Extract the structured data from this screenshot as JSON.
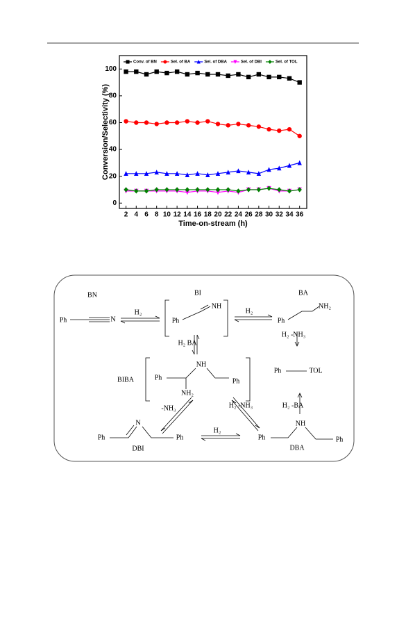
{
  "chart_data": {
    "type": "line",
    "xlabel": "Time-on-stream (h)",
    "ylabel": "Conversion/Selectivity (%)",
    "x": [
      2,
      4,
      6,
      8,
      10,
      12,
      14,
      16,
      18,
      20,
      22,
      24,
      26,
      28,
      30,
      32,
      34,
      36
    ],
    "xlim": [
      0.7,
      37.4
    ],
    "xticks": [
      2,
      4,
      6,
      8,
      10,
      12,
      14,
      16,
      18,
      20,
      22,
      24,
      26,
      28,
      30,
      32,
      34,
      36
    ],
    "ylim": [
      -4,
      110
    ],
    "yticks": [
      0,
      20,
      40,
      60,
      80,
      100
    ],
    "legend": "top",
    "series": [
      {
        "name": "Conv. of BN",
        "color": "#000000",
        "marker": "square",
        "values": [
          98,
          98,
          96,
          98,
          97,
          98,
          96,
          97,
          96,
          96,
          95,
          96,
          94,
          96,
          94,
          94,
          93,
          90
        ]
      },
      {
        "name": "Sel. of BA",
        "color": "#ff0000",
        "marker": "circle",
        "values": [
          61,
          60,
          60,
          59,
          60,
          60,
          61,
          60,
          61,
          59,
          58,
          59,
          58,
          57,
          55,
          54,
          55,
          50
        ]
      },
      {
        "name": "Sel. of DBA",
        "color": "#0000ff",
        "marker": "triangle-up",
        "values": [
          22,
          22,
          22,
          23,
          22,
          22,
          21,
          22,
          21,
          22,
          23,
          24,
          23,
          22,
          25,
          26,
          28,
          30
        ]
      },
      {
        "name": "Sel. of DBI",
        "color": "#ff00ff",
        "marker": "triangle-down",
        "values": [
          9,
          9,
          9,
          9,
          9,
          9,
          8,
          9,
          9,
          8,
          9,
          8,
          10,
          10,
          11,
          9,
          9,
          10
        ]
      },
      {
        "name": "Sel. of TOL",
        "color": "#008000",
        "marker": "diamond",
        "values": [
          10,
          9,
          9,
          10,
          10,
          10,
          10,
          10,
          10,
          10,
          10,
          9,
          10,
          10,
          11,
          10,
          9,
          10
        ]
      }
    ]
  },
  "scheme": {
    "labels": [
      "BN",
      "BI",
      "BA",
      "Ph",
      "N",
      "H₂",
      "NH",
      "Ph",
      "H₂",
      "NH₂",
      "Ph",
      "H₂ -NH₃",
      "H₂ BA",
      "NH",
      "BIBA",
      "Ph",
      "Ph",
      "Ph",
      "TOL",
      "NH₂",
      "-NH₃",
      "H₂ -NH₃",
      "H₂ -BA",
      "N",
      "Ph",
      "Ph",
      "H₂",
      "NH",
      "Ph",
      "Ph",
      "DBI",
      "DBA"
    ]
  }
}
